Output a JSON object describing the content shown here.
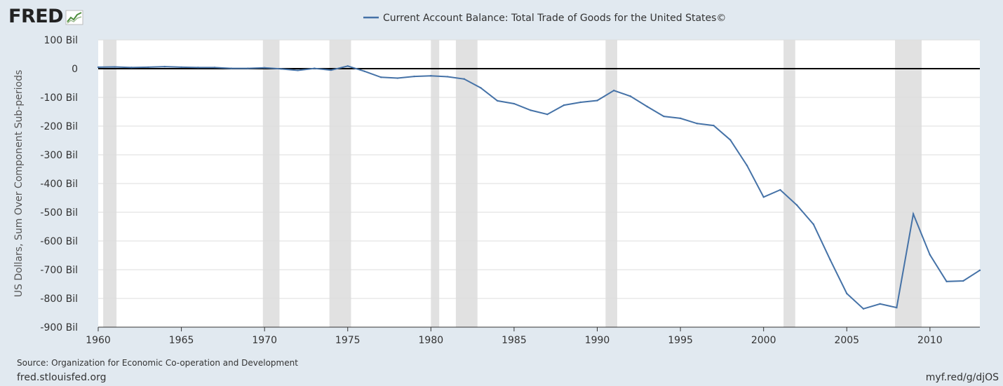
{
  "brand": {
    "logo_text": "FRED"
  },
  "footer": {
    "source": "Source: Organization for Economic Co-operation and Development",
    "site": "fred.stlouisfed.org",
    "shortlink": "myf.red/g/djOS"
  },
  "colors": {
    "background": "#e1e9f0",
    "plot_background": "#ffffff",
    "series_line": "#4572a7",
    "recession_band": "#e1e1e1",
    "zero_line": "#000000",
    "grid": "#dddddd"
  },
  "chart_data": {
    "type": "line",
    "title": "",
    "xlabel": "",
    "ylabel": "US Dollars, Sum Over Component Sub-periods",
    "xlim": [
      1960,
      2013
    ],
    "ylim": [
      -900,
      100
    ],
    "grid": true,
    "legend_position": "top-center",
    "x_ticks": [
      1960,
      1965,
      1970,
      1975,
      1980,
      1985,
      1990,
      1995,
      2000,
      2005,
      2010
    ],
    "y_ticks": [
      {
        "value": 100,
        "label": "100 Bil"
      },
      {
        "value": 0,
        "label": "0"
      },
      {
        "value": -100,
        "label": "-100 Bil"
      },
      {
        "value": -200,
        "label": "-200 Bil"
      },
      {
        "value": -300,
        "label": "-300 Bil"
      },
      {
        "value": -400,
        "label": "-400 Bil"
      },
      {
        "value": -500,
        "label": "-500 Bil"
      },
      {
        "value": -600,
        "label": "-600 Bil"
      },
      {
        "value": -700,
        "label": "-700 Bil"
      },
      {
        "value": -800,
        "label": "-800 Bil"
      },
      {
        "value": -900,
        "label": "-900 Bil"
      }
    ],
    "recessions": [
      [
        1960.3,
        1961.1
      ],
      [
        1969.9,
        1970.9
      ],
      [
        1973.9,
        1975.2
      ],
      [
        1980.0,
        1980.5
      ],
      [
        1981.5,
        1982.8
      ],
      [
        1990.5,
        1991.2
      ],
      [
        2001.2,
        2001.9
      ],
      [
        2007.9,
        2009.5
      ]
    ],
    "series": [
      {
        "name": "Current Account Balance: Total Trade of Goods for the United States©",
        "x": [
          1960,
          1961,
          1962,
          1963,
          1964,
          1965,
          1966,
          1967,
          1968,
          1969,
          1970,
          1971,
          1972,
          1973,
          1974,
          1975,
          1976,
          1977,
          1978,
          1979,
          1980,
          1981,
          1982,
          1983,
          1984,
          1985,
          1986,
          1987,
          1988,
          1989,
          1990,
          1991,
          1992,
          1993,
          1994,
          1995,
          1996,
          1997,
          1998,
          1999,
          2000,
          2001,
          2002,
          2003,
          2004,
          2005,
          2006,
          2007,
          2008,
          2009,
          2010,
          2011,
          2012,
          2013
        ],
        "values": [
          5,
          6,
          4,
          5,
          7,
          5,
          4,
          4,
          1,
          1,
          3,
          -1,
          -6,
          1,
          -5,
          9,
          -9,
          -30,
          -33,
          -27,
          -25,
          -28,
          -36,
          -67,
          -112,
          -122,
          -145,
          -159,
          -127,
          -117,
          -111,
          -76,
          -96,
          -132,
          -166,
          -173,
          -191,
          -198,
          -248,
          -337,
          -447,
          -422,
          -475,
          -542,
          -665,
          -783,
          -836,
          -819,
          -832,
          -506,
          -648,
          -741,
          -739,
          -702
        ]
      }
    ]
  }
}
